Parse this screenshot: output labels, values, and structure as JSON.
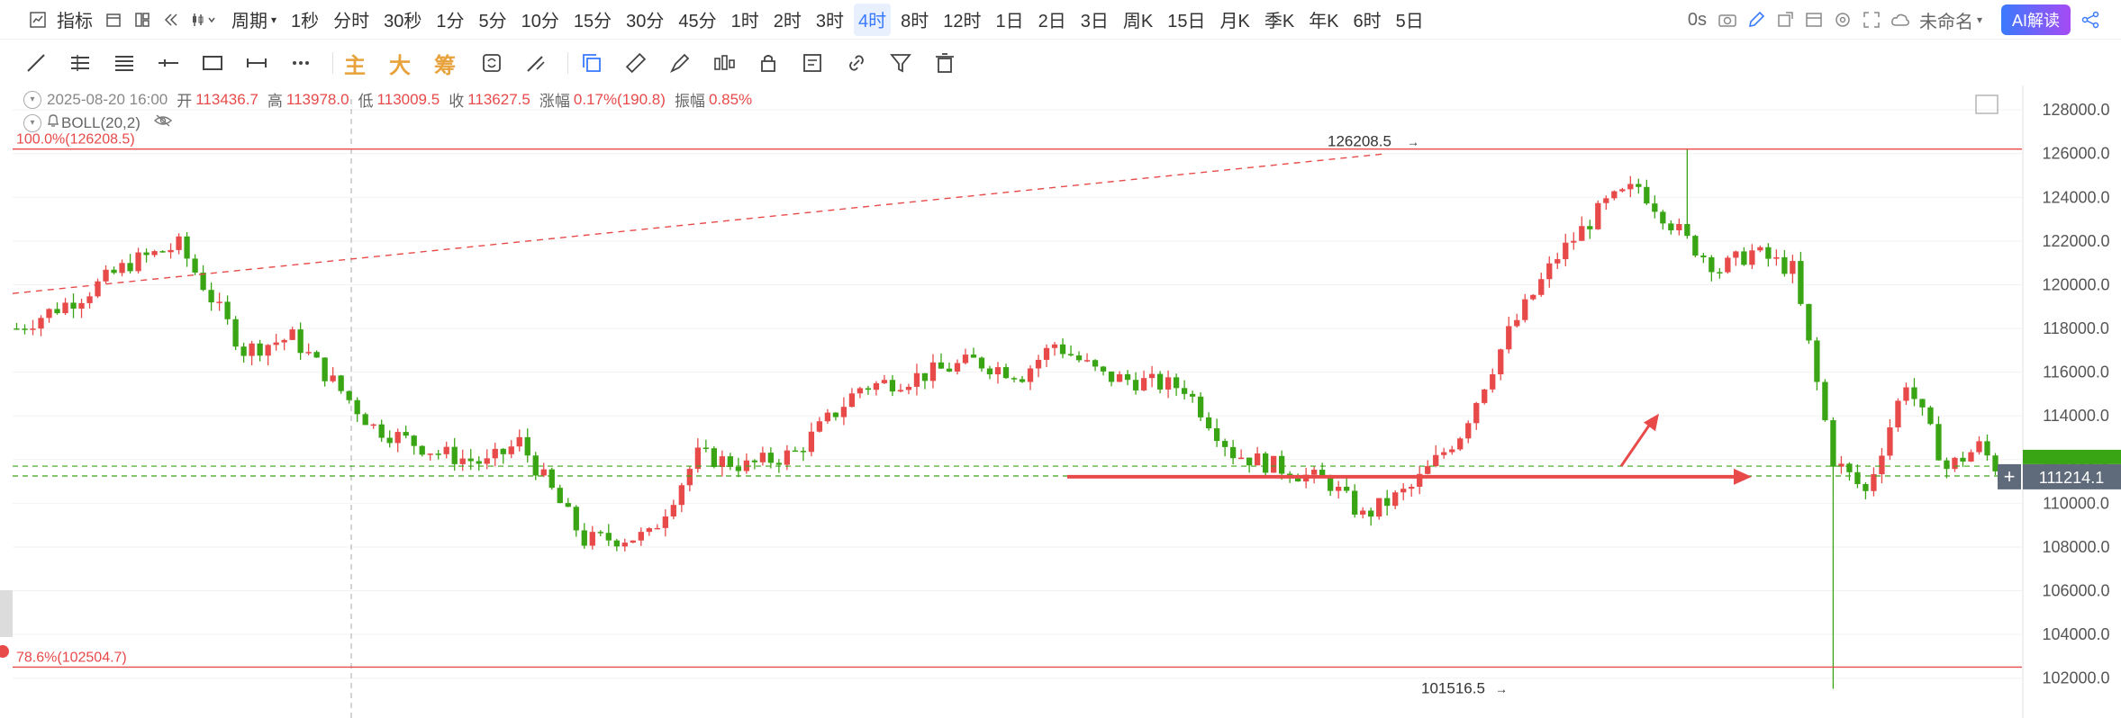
{
  "toolbar": {
    "indicator_label": "指标",
    "period_label": "周期",
    "periods": [
      "1秒",
      "分时",
      "30秒",
      "1分",
      "5分",
      "10分",
      "15分",
      "30分",
      "45分",
      "1时",
      "2时",
      "3时",
      "4时",
      "8时",
      "12时",
      "1日",
      "2日",
      "3日",
      "周K",
      "15日",
      "月K",
      "季K",
      "年K",
      "6时",
      "5日"
    ],
    "active_period": "4时",
    "timer": "0s",
    "layout_name": "未命名",
    "ai_button": "AI解读"
  },
  "drawing_tools": {
    "main_label": "主",
    "big_label": "大",
    "chip_label": "筹"
  },
  "info_bar": {
    "datetime": "2025-08-20 16:00",
    "open_label": "开",
    "open": "113436.7",
    "high_label": "高",
    "high": "113978.0",
    "low_label": "低",
    "low": "113009.5",
    "close_label": "收",
    "close": "113627.5",
    "change_label": "涨幅",
    "change": "0.17%(190.8)",
    "amp_label": "振幅",
    "amp": "0.85%"
  },
  "indicator": {
    "name": "BOLL(20,2)"
  },
  "colors": {
    "up": "#e84a4a",
    "down": "#3aa514",
    "fib": "#e84a4a",
    "grid": "#f2f2f2"
  },
  "chart_data": {
    "type": "candlestick",
    "y_axis_ticks": [
      102000,
      104000,
      106000,
      108000,
      110000,
      112000,
      114000,
      116000,
      118000,
      120000,
      122000,
      124000,
      126000,
      128000
    ],
    "ylim": [
      101000,
      128500
    ],
    "price_tag": "111214.1",
    "fib_levels": [
      {
        "label": "100.0%(126208.5)",
        "value": 126208.5
      },
      {
        "label": "78.6%(102504.7)",
        "value": 102504.7
      }
    ],
    "annotations": [
      {
        "text": "126208.5",
        "value": 126208.5
      },
      {
        "text": "101516.5",
        "value": 101516.5
      }
    ],
    "dashed_levels": [
      111700,
      111250
    ],
    "trend_path": [
      [
        0,
        118000
      ],
      [
        8,
        119500
      ],
      [
        14,
        121000
      ],
      [
        20,
        121800
      ],
      [
        28,
        117000
      ],
      [
        34,
        117600
      ],
      [
        44,
        113500
      ],
      [
        52,
        112300
      ],
      [
        58,
        111800
      ],
      [
        62,
        112800
      ],
      [
        70,
        108300
      ],
      [
        78,
        108500
      ],
      [
        84,
        112200
      ],
      [
        90,
        111700
      ],
      [
        96,
        112300
      ],
      [
        100,
        113800
      ],
      [
        104,
        115300
      ],
      [
        110,
        115700
      ],
      [
        118,
        116500
      ],
      [
        124,
        115900
      ],
      [
        128,
        117300
      ],
      [
        134,
        115800
      ],
      [
        144,
        115300
      ],
      [
        150,
        112300
      ],
      [
        156,
        111600
      ],
      [
        162,
        110900
      ],
      [
        166,
        109400
      ],
      [
        172,
        110700
      ],
      [
        178,
        113200
      ],
      [
        184,
        117800
      ],
      [
        190,
        121300
      ],
      [
        196,
        123700
      ],
      [
        200,
        124500
      ],
      [
        206,
        122000
      ],
      [
        210,
        120700
      ],
      [
        214,
        121500
      ],
      [
        219,
        120700
      ],
      [
        224,
        112000
      ],
      [
        228,
        110500
      ],
      [
        233,
        115600
      ],
      [
        238,
        111600
      ],
      [
        242,
        112600
      ],
      [
        244,
        111700
      ]
    ]
  }
}
